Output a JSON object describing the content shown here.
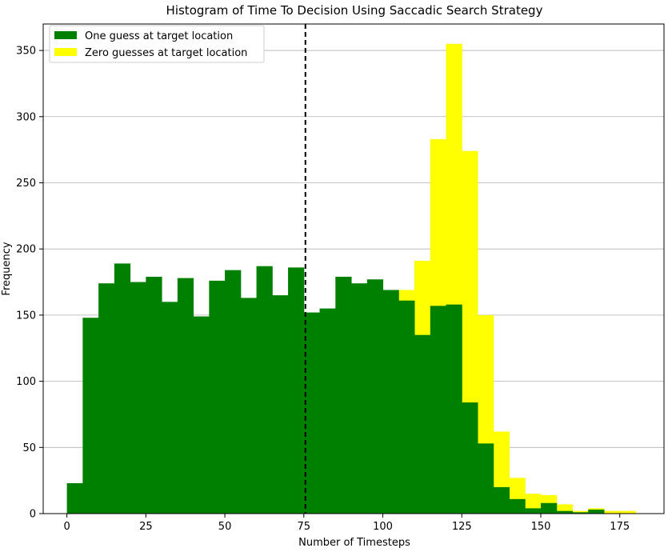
{
  "chart_data": {
    "type": "bar",
    "title": "Histogram of Time To Decision Using Saccadic Search Strategy",
    "xlabel": "Number of Timesteps",
    "ylabel": "Frequency",
    "xlim": [
      -7.5,
      189
    ],
    "ylim": [
      0,
      370
    ],
    "xticks": [
      0,
      25,
      50,
      75,
      100,
      125,
      150,
      175
    ],
    "yticks": [
      0,
      50,
      100,
      150,
      200,
      250,
      300,
      350
    ],
    "grid": "y",
    "legend_position": "top-left",
    "bin_width": 5,
    "vline": {
      "x": 75.5,
      "style": "dashed",
      "color": "#000000"
    },
    "series": [
      {
        "name": "One guess at target location",
        "color": "#008000",
        "x": [
          0,
          5,
          10,
          15,
          20,
          25,
          30,
          35,
          40,
          45,
          50,
          55,
          60,
          65,
          70,
          75,
          80,
          85,
          90,
          95,
          100,
          105,
          110,
          115,
          120,
          125,
          130,
          135,
          140,
          145,
          150,
          155,
          160,
          165,
          170,
          175
        ],
        "values": [
          23,
          148,
          174,
          189,
          175,
          179,
          160,
          178,
          149,
          176,
          184,
          163,
          187,
          165,
          186,
          152,
          155,
          179,
          174,
          177,
          169,
          161,
          135,
          157,
          158,
          84,
          53,
          20,
          11,
          4,
          8,
          2,
          1,
          3,
          0,
          0
        ]
      },
      {
        "name": "Zero guesses at target location",
        "color": "#ffff00",
        "x": [
          0,
          5,
          10,
          15,
          20,
          25,
          30,
          35,
          40,
          45,
          50,
          55,
          60,
          65,
          70,
          75,
          80,
          85,
          90,
          95,
          100,
          105,
          110,
          115,
          120,
          125,
          130,
          135,
          140,
          145,
          150,
          155,
          160,
          165,
          170,
          175
        ],
        "values": [
          0,
          0,
          0,
          0,
          0,
          0,
          0,
          0,
          0,
          0,
          0,
          0,
          0,
          0,
          0,
          0,
          0,
          0,
          0,
          0,
          0,
          169,
          191,
          283,
          355,
          274,
          150,
          62,
          27,
          15,
          14,
          7,
          2,
          4,
          2,
          2
        ]
      }
    ]
  }
}
